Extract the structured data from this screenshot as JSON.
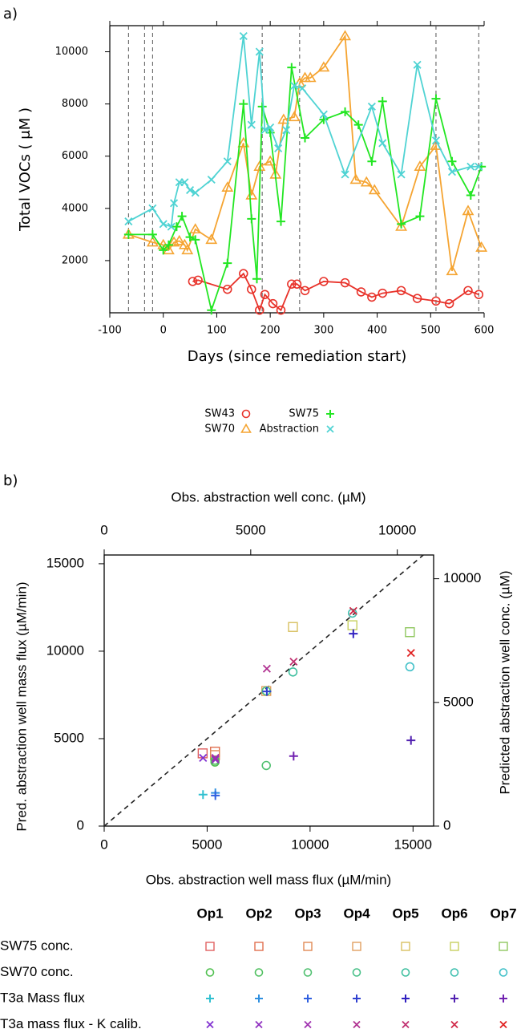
{
  "chart_data": [
    {
      "type": "line",
      "label": "a)",
      "xlabel": "Days (since remediation start)",
      "ylabel": "Total VOCs ( μM )",
      "xlim": [
        -100,
        600
      ],
      "xticks": [
        -100,
        0,
        100,
        200,
        300,
        400,
        500,
        600
      ],
      "ylim": [
        0,
        11000
      ],
      "yticks": [
        2000,
        4000,
        6000,
        8000,
        10000
      ],
      "event_days": [
        -65,
        -35,
        -20,
        185,
        255,
        510,
        590
      ],
      "series": [
        {
          "name": "SW43",
          "color": "#e8322a",
          "marker": "circle",
          "x": [
            55,
            65,
            120,
            150,
            165,
            180,
            190,
            205,
            220,
            240,
            250,
            265,
            300,
            340,
            370,
            390,
            410,
            445,
            475,
            510,
            535,
            570,
            590
          ],
          "values": [
            1200,
            1250,
            900,
            1500,
            900,
            100,
            700,
            350,
            100,
            1100,
            1100,
            850,
            1200,
            1150,
            800,
            600,
            750,
            850,
            550,
            450,
            350,
            850,
            700
          ]
        },
        {
          "name": "SW70",
          "color": "#f5a431",
          "marker": "triangle",
          "x": [
            -65,
            -20,
            0,
            10,
            20,
            30,
            40,
            45,
            60,
            90,
            120,
            150,
            165,
            180,
            200,
            210,
            225,
            245,
            255,
            265,
            275,
            300,
            340,
            360,
            380,
            395,
            445,
            480,
            510,
            540,
            570,
            595
          ],
          "values": [
            3000,
            2700,
            2600,
            2400,
            2700,
            2750,
            2600,
            2400,
            3200,
            2800,
            4800,
            6500,
            4500,
            5600,
            5800,
            5300,
            7400,
            7500,
            8800,
            9000,
            9000,
            9400,
            10600,
            5100,
            5000,
            4700,
            3300,
            5600,
            6400,
            1600,
            3900,
            2500
          ]
        },
        {
          "name": "SW75",
          "color": "#22e622",
          "marker": "plus",
          "x": [
            -65,
            -20,
            0,
            10,
            25,
            35,
            50,
            60,
            90,
            120,
            150,
            165,
            175,
            185,
            200,
            220,
            240,
            265,
            300,
            340,
            365,
            390,
            410,
            445,
            480,
            510,
            540,
            575,
            595
          ],
          "values": [
            3000,
            3000,
            2400,
            2600,
            3300,
            3700,
            2900,
            2800,
            100,
            1900,
            8000,
            3600,
            1300,
            7900,
            6900,
            3500,
            9400,
            6700,
            7400,
            7700,
            7200,
            5800,
            8100,
            3400,
            3700,
            8200,
            5800,
            4500,
            5600
          ]
        },
        {
          "name": "Abstraction",
          "color": "#4fd3d3",
          "marker": "x",
          "x": [
            -65,
            -20,
            0,
            15,
            20,
            30,
            40,
            50,
            60,
            90,
            120,
            150,
            165,
            180,
            190,
            200,
            215,
            230,
            245,
            260,
            300,
            340,
            390,
            410,
            445,
            475,
            510,
            540,
            575,
            590
          ],
          "values": [
            3500,
            4000,
            3400,
            3300,
            4200,
            5000,
            5000,
            4700,
            4600,
            5100,
            5800,
            10600,
            7200,
            10000,
            7000,
            7100,
            6300,
            7000,
            8700,
            8600,
            7600,
            5300,
            7900,
            6500,
            5300,
            9500,
            6600,
            5400,
            5600,
            5600
          ]
        }
      ]
    },
    {
      "type": "scatter",
      "label": "b)",
      "xlabel": "Obs. abstraction well mass flux (µM/min)",
      "ylabel": "Pred. abstraction well mass flux (µM/min)",
      "x2label": "Obs. abstraction well conc. (µM)",
      "y2label": "Predicted abstraction well conc. (µM)",
      "xlim": [
        0,
        16000
      ],
      "xticks": [
        0,
        5000,
        10000,
        15000
      ],
      "ylim": [
        0,
        15500
      ],
      "yticks": [
        0,
        5000,
        10000,
        15000
      ],
      "x2lim": [
        0,
        11240
      ],
      "x2ticks": [
        0,
        5000,
        10000
      ],
      "y2lim": [
        0,
        10960
      ],
      "y2ticks": [
        0,
        5000,
        10000
      ],
      "categories": [
        "Op1",
        "Op2",
        "Op3",
        "Op4",
        "Op5",
        "Op6",
        "Op7"
      ],
      "series": [
        {
          "name": "SW75 conc.",
          "marker": "square",
          "axis": "y2",
          "colors": [
            "#e06060",
            "#e07050",
            "#e08a55",
            "#e0a060",
            "#d8c060",
            "#c8d060",
            "#90c860"
          ],
          "x": [
            3360,
            3780,
            3780,
            5530,
            6440,
            8470,
            10430
          ],
          "y": [
            2940,
            3010,
            2870,
            5460,
            8050,
            8120,
            7840
          ]
        },
        {
          "name": "SW70 conc.",
          "marker": "circle",
          "axis": "y2",
          "colors": [
            "#50c050",
            "#50c060",
            "#50c070",
            "#48c088",
            "#40c0a0",
            "#40c0b0",
            "#40c0c8"
          ],
          "x": [
            3780,
            3780,
            5530,
            5530,
            6440,
            8470,
            10430
          ],
          "y": [
            2590,
            2660,
            2450,
            5460,
            6230,
            8610,
            6440
          ]
        },
        {
          "name": "T3a Mass flux",
          "marker": "plus",
          "colors": [
            "#30c0d0",
            "#3090e0",
            "#3060e0",
            "#3040d0",
            "#3020c0",
            "#5020b0",
            "#7020b0"
          ],
          "x": [
            4800,
            5400,
            5400,
            7900,
            12100,
            14900,
            9200
          ],
          "y": [
            1800,
            1900,
            1750,
            7700,
            11000,
            4900,
            4000
          ]
        },
        {
          "name": "T3a mass flux - K calib.",
          "marker": "x",
          "colors": [
            "#8030d0",
            "#9030c0",
            "#a030b0",
            "#b03090",
            "#c03070",
            "#d02848",
            "#e02020"
          ],
          "x": [
            4800,
            5400,
            5400,
            7900,
            9200,
            12100,
            14900
          ],
          "y": [
            3900,
            3800,
            3900,
            9000,
            9400,
            12300,
            9900
          ]
        }
      ]
    }
  ]
}
